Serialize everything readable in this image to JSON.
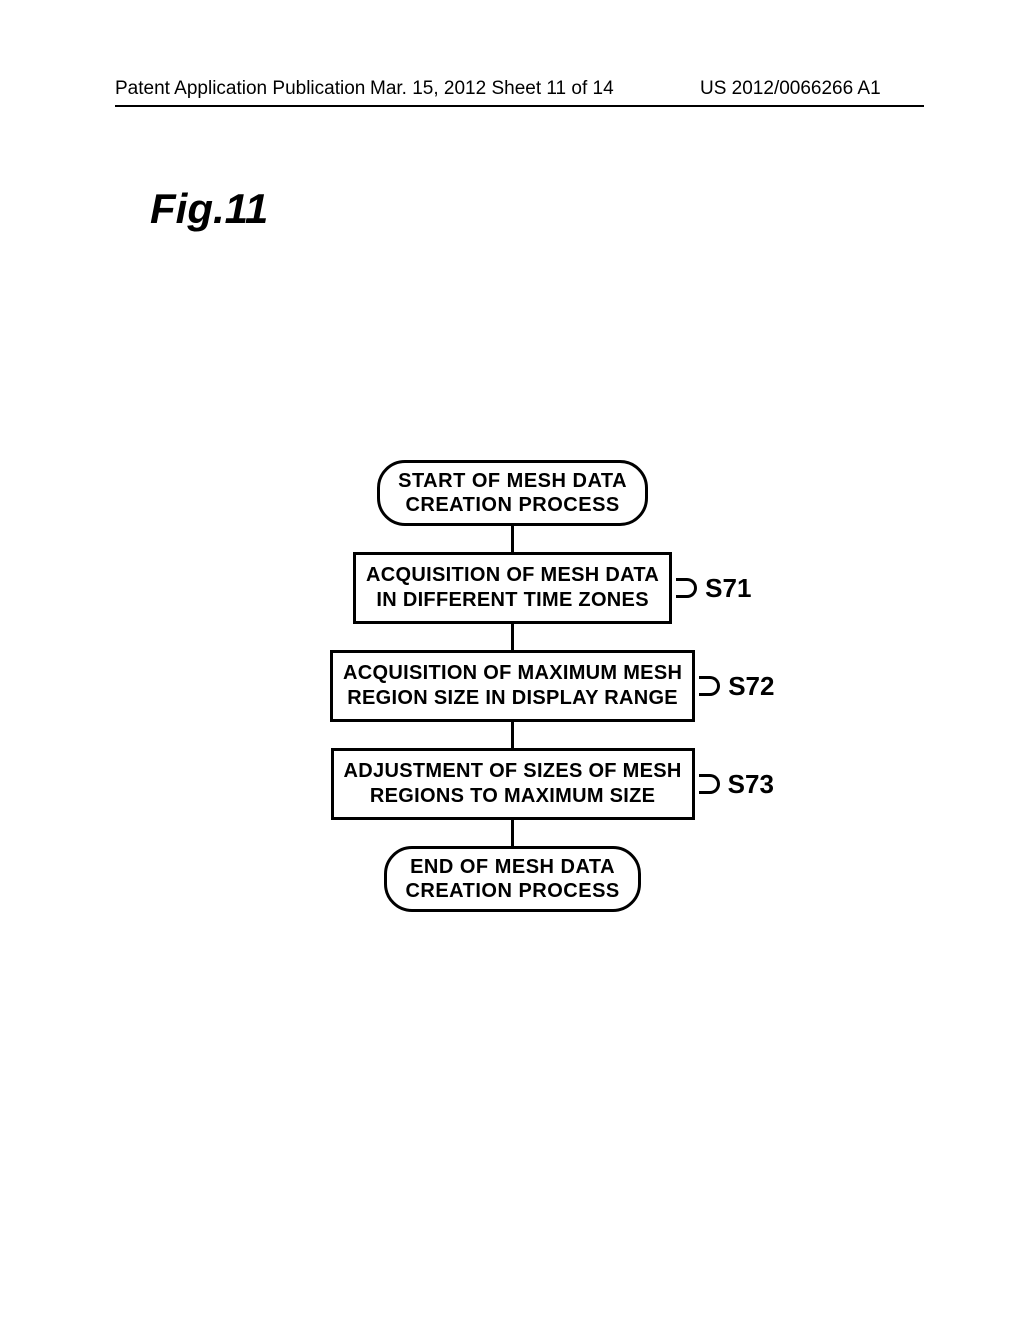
{
  "header": {
    "left": "Patent Application Publication",
    "center": "Mar. 15, 2012  Sheet 11 of 14",
    "right": "US 2012/0066266 A1"
  },
  "figure_label": "Fig.11",
  "flowchart": {
    "start": {
      "line1": "START OF MESH DATA",
      "line2": "CREATION PROCESS"
    },
    "steps": [
      {
        "label": "S71",
        "line1": "ACQUISITION OF MESH DATA",
        "line2": "IN DIFFERENT TIME ZONES"
      },
      {
        "label": "S72",
        "line1": "ACQUISITION OF MAXIMUM MESH",
        "line2": "REGION SIZE IN DISPLAY RANGE"
      },
      {
        "label": "S73",
        "line1": "ADJUSTMENT OF SIZES OF MESH",
        "line2": "REGIONS TO MAXIMUM SIZE"
      }
    ],
    "end": {
      "line1": "END OF MESH DATA",
      "line2": "CREATION PROCESS"
    }
  }
}
